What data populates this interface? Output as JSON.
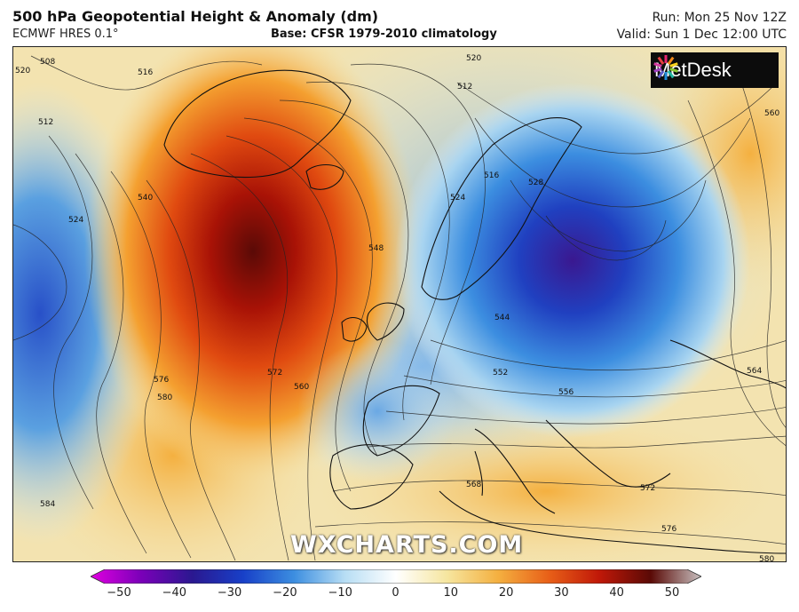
{
  "header": {
    "title": "500 hPa Geopotential Height & Anomaly (dm)",
    "model": "ECMWF HRES 0.1°",
    "base": "Base: CFSR 1979-2010 climatology",
    "run": "Run: Mon 25 Nov 12Z",
    "valid": "Valid: Sun 1 Dec 12:00 UTC"
  },
  "logo": {
    "text": "MetDesk",
    "icon": "metdesk-starburst-logo"
  },
  "watermark": "WXCHARTS.COM",
  "contour_labels": [
    "520",
    "508",
    "516",
    "512",
    "524",
    "540",
    "548",
    "576",
    "580",
    "572",
    "560",
    "584",
    "520",
    "512",
    "516",
    "524",
    "528",
    "544",
    "552",
    "556",
    "564",
    "568",
    "572",
    "576",
    "580",
    "560"
  ],
  "colorbar": {
    "ticks": [
      "−50",
      "−40",
      "−30",
      "−20",
      "−10",
      "0",
      "10",
      "20",
      "30",
      "40",
      "50"
    ],
    "colors": [
      "#e000e0",
      "#7a00b8",
      "#2a1890",
      "#1840c8",
      "#3c8ee0",
      "#b8def4",
      "#ffffff",
      "#f6e6a0",
      "#f4b040",
      "#e86018",
      "#c01808",
      "#5a0a06",
      "#c8c0c0"
    ]
  }
}
